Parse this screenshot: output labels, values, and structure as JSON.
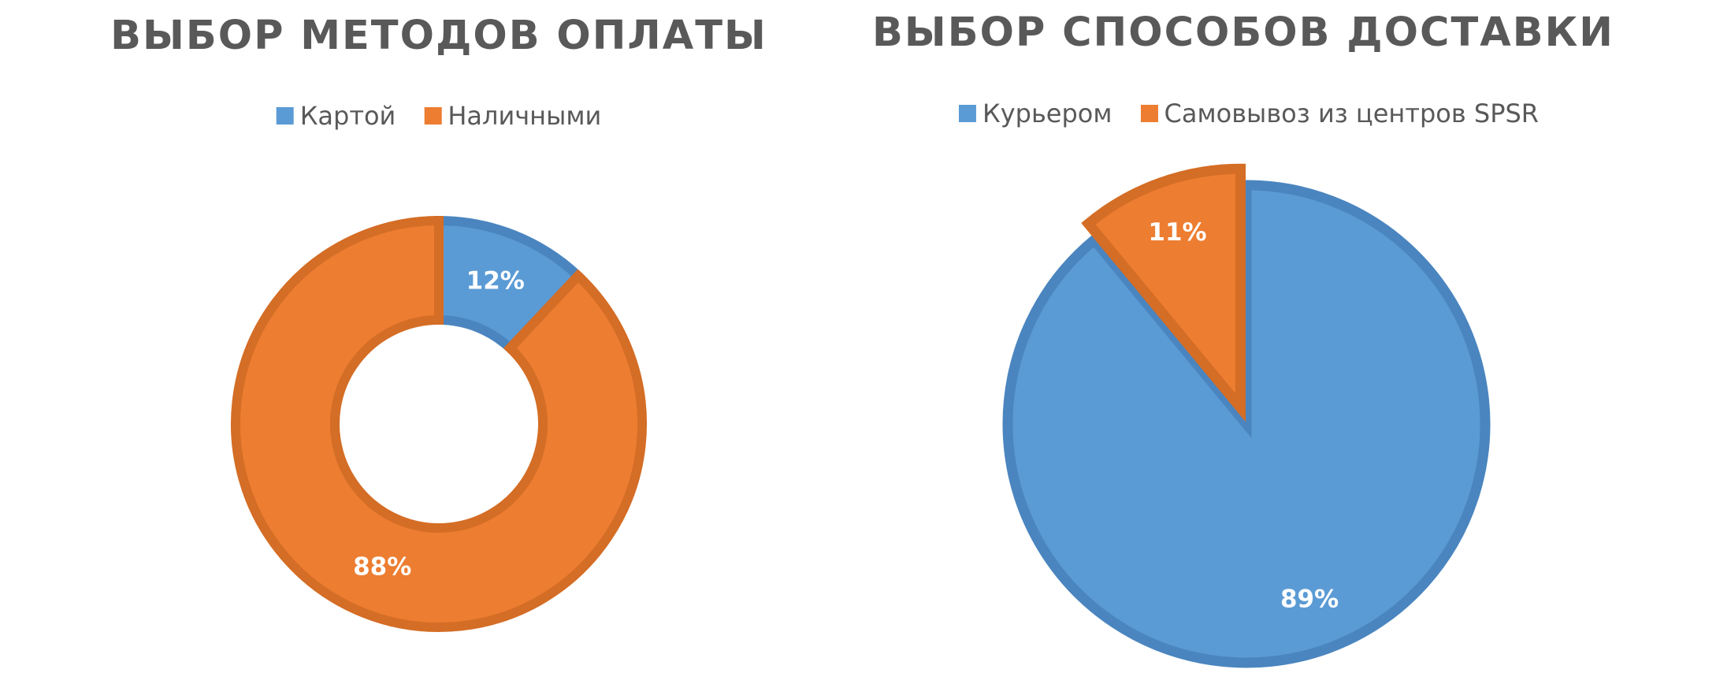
{
  "colors": {
    "blue": "#5b9bd5",
    "blue_border": "#4a85bf",
    "orange": "#ed7d31",
    "orange_border": "#d46d25",
    "title": "#595959",
    "label": "#ffffff"
  },
  "chart_data": [
    {
      "type": "pie",
      "variant": "doughnut",
      "title": "ВЫБОР МЕТОДОВ ОПЛАТЫ",
      "legend_position": "top",
      "categories": [
        "Картой",
        "Наличными"
      ],
      "values": [
        12,
        88
      ],
      "data_labels": [
        "12%",
        "88%"
      ],
      "colors": [
        "#5b9bd5",
        "#ed7d31"
      ]
    },
    {
      "type": "pie",
      "title": "ВЫБОР СПОСОБОВ ДОСТАВКИ",
      "legend_position": "top",
      "categories": [
        "Курьером",
        "Самовывоз из центров SPSR"
      ],
      "values": [
        89,
        11
      ],
      "data_labels": [
        "89%",
        "11%"
      ],
      "colors": [
        "#5b9bd5",
        "#ed7d31"
      ],
      "exploded_slice": "Самовывоз из центров SPSR"
    }
  ]
}
